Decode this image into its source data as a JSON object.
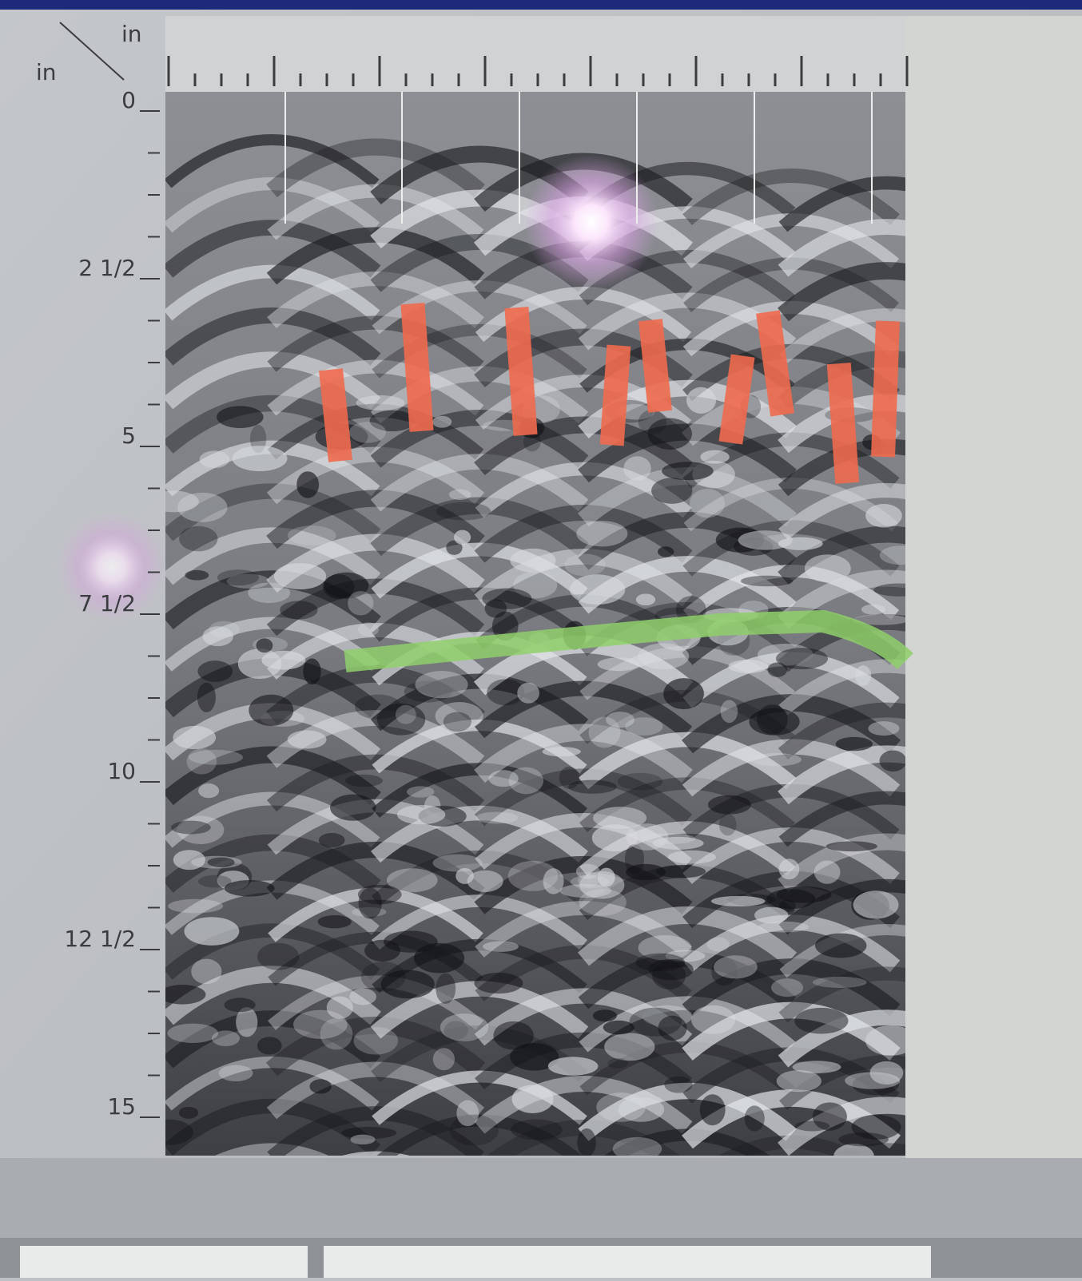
{
  "axes": {
    "x_unit": "in",
    "y_unit": "in"
  },
  "y_ticks": [
    "0",
    "2 1/2",
    "5",
    "7 1/2",
    "10",
    "12 1/2",
    "15"
  ]
}
